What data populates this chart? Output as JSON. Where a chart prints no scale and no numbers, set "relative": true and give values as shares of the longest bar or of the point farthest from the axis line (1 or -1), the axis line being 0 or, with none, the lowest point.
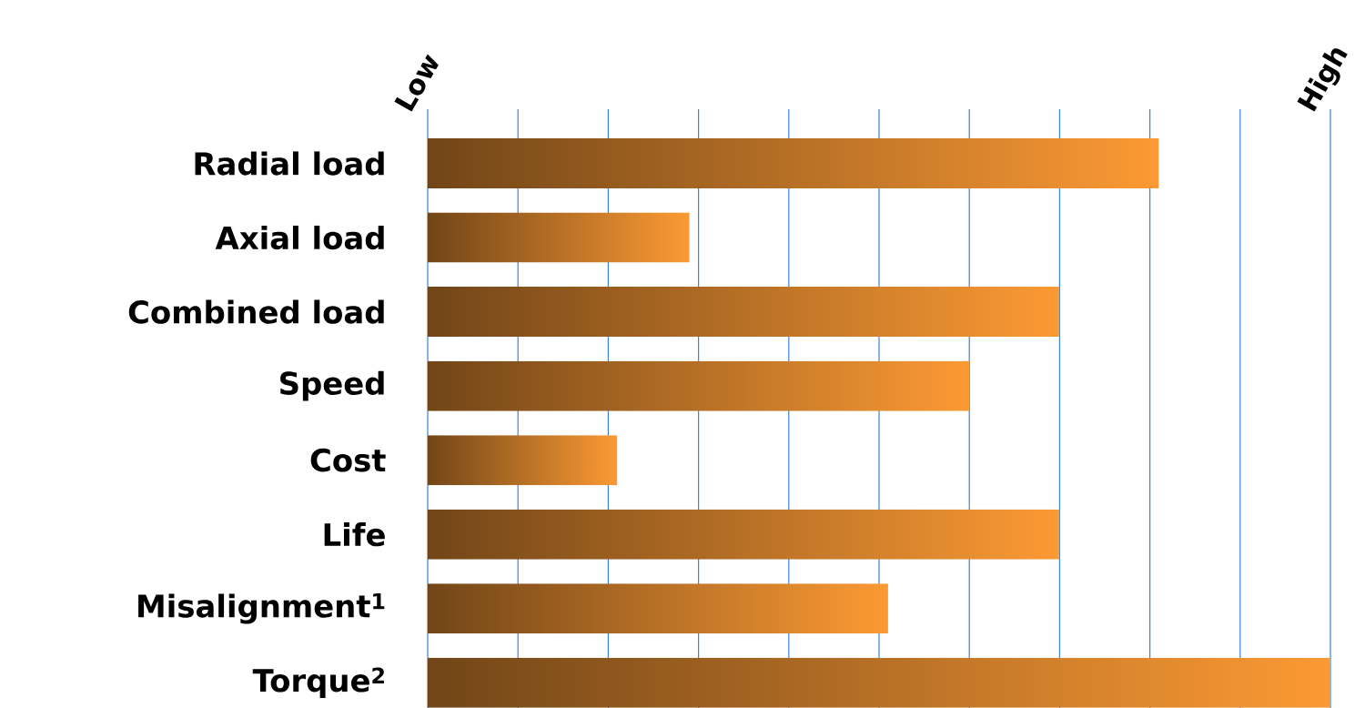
{
  "chart_data": {
    "type": "bar",
    "orientation": "horizontal",
    "relative": true,
    "categories": [
      "Radial load",
      "Axial load",
      "Combined load",
      "Speed",
      "Cost",
      "Life",
      "Misalignment$^{1}$",
      "Torque$^{2}$"
    ],
    "values": [
      0.81,
      0.29,
      0.7,
      0.6,
      0.21,
      0.7,
      0.51,
      1
    ],
    "color": "#fc9a34",
    "ref_lines": [
      {
        "axis": "x",
        "value": 0,
        "color": "#3b82e0"
      },
      {
        "axis": "x",
        "value": 0.1,
        "color": "#3b82e0"
      },
      {
        "axis": "x",
        "value": 0.2,
        "color": "#3b82e0"
      },
      {
        "axis": "x",
        "value": 0.3,
        "color": "#3b82e0"
      },
      {
        "axis": "x",
        "value": 0.4,
        "color": "#3b82e0"
      },
      {
        "axis": "x",
        "value": 0.5,
        "color": "#3b82e0"
      },
      {
        "axis": "x",
        "value": 0.6,
        "color": "#3b82e0"
      },
      {
        "axis": "x",
        "value": 0.7,
        "color": "#3b82e0"
      },
      {
        "axis": "x",
        "value": 0.8,
        "color": "#3b82e0"
      },
      {
        "axis": "x",
        "value": 0.9,
        "color": "#3b82e0"
      },
      {
        "axis": "x",
        "value": 1,
        "color": "#3b82e0"
      }
    ],
    "annotations": [
      "Low",
      "High"
    ]
  }
}
